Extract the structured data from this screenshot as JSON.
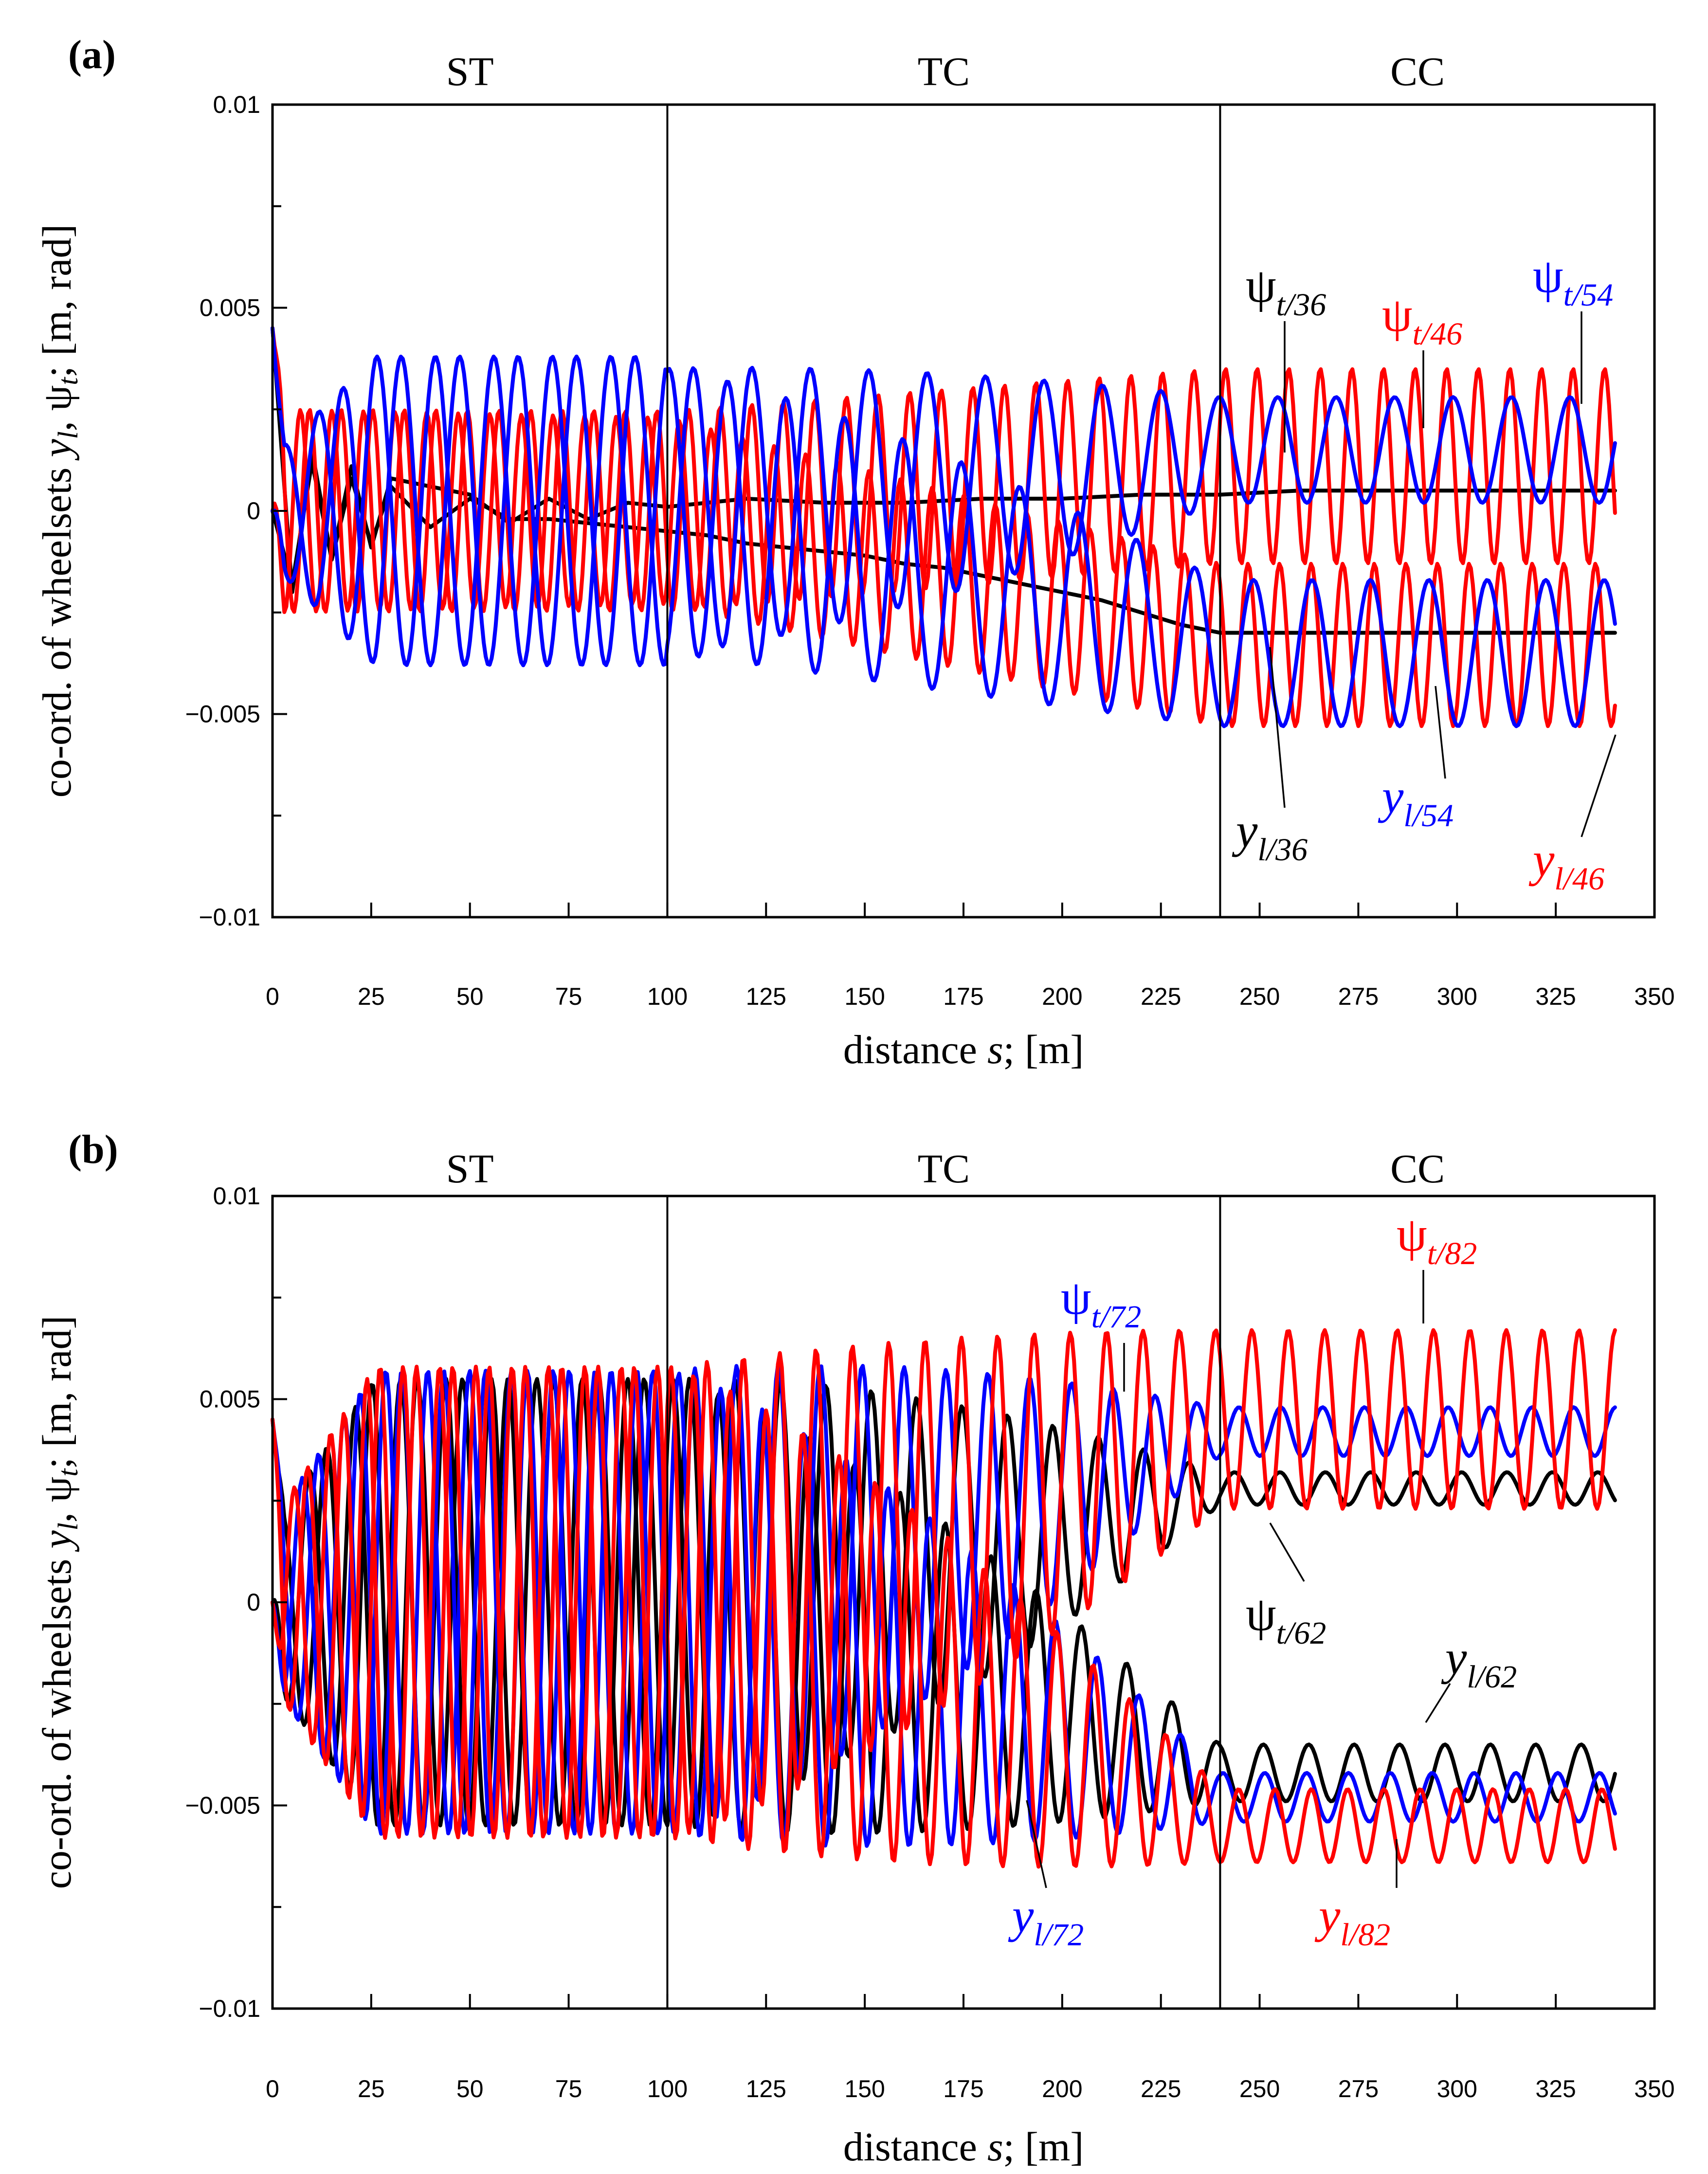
{
  "chart_data": [
    {
      "type": "line",
      "panel_label": "(a)",
      "xlabel_prefix": "distance ",
      "xlabel_var": "s",
      "xlabel_suffix": "; [m]",
      "ylabel": "co-ord. of wheelsets y_l, ψ_t; [m, rad]",
      "ylabel_parts": [
        "co-ord. of wheelsets ",
        "y",
        "l",
        ", ψ",
        "t",
        "; [m, rad]"
      ],
      "xlim": [
        0,
        350
      ],
      "ylim": [
        -0.01,
        0.01
      ],
      "x_ticks": [
        "0",
        "25",
        "50",
        "75",
        "100",
        "125",
        "150",
        "175",
        "200",
        "225",
        "250",
        "275",
        "300",
        "325",
        "350"
      ],
      "y_ticks": [
        "−0.01",
        "−0.005",
        "0",
        "0.005",
        "0.01"
      ],
      "section_dividers": [
        100,
        240
      ],
      "sections": [
        "ST",
        "TC",
        "CC"
      ],
      "series": [
        {
          "name": "ψ_t/36",
          "color": "#000000",
          "x": [
            0,
            5,
            10,
            15,
            20,
            25,
            30,
            40,
            50,
            60,
            70,
            80,
            90,
            100,
            120,
            140,
            160,
            180,
            200,
            220,
            240,
            260,
            280,
            300,
            320,
            340
          ],
          "values": [
            0.0045,
            -0.002,
            0.0015,
            -0.0012,
            0.0011,
            -0.0009,
            0.0008,
            0.0006,
            0.0004,
            -0.0003,
            0.0003,
            -0.0002,
            0.0002,
            0.0001,
            0.0003,
            0.0002,
            0.0002,
            0.0003,
            0.0003,
            0.0004,
            0.0004,
            0.0005,
            0.0005,
            0.0005,
            0.0005,
            0.0005
          ]
        },
        {
          "name": "y_l/36",
          "color": "#000000",
          "x": [
            0,
            5,
            10,
            15,
            20,
            25,
            30,
            40,
            50,
            60,
            70,
            80,
            90,
            100,
            110,
            120,
            130,
            140,
            150,
            160,
            170,
            180,
            190,
            200,
            210,
            220,
            230,
            240,
            260,
            280,
            300,
            320,
            340
          ],
          "values": [
            0.0,
            -0.0018,
            0.0012,
            -0.0012,
            0.0008,
            -0.0008,
            0.0006,
            -0.0004,
            0.0003,
            -0.0002,
            -0.0002,
            -0.0003,
            -0.0004,
            -0.0005,
            -0.0006,
            -0.0008,
            -0.0009,
            -0.001,
            -0.0011,
            -0.0013,
            -0.0014,
            -0.0016,
            -0.0018,
            -0.002,
            -0.0022,
            -0.0025,
            -0.0028,
            -0.003,
            -0.003,
            -0.003,
            -0.003,
            -0.003,
            -0.003
          ]
        },
        {
          "name": "ψ_t/46",
          "color": "#ff0000",
          "start": 0.0045,
          "damp_to": 0.0024,
          "center_st": 0.0,
          "center_cc": 0.0011,
          "period": 8.0,
          "phase": 0.5
        },
        {
          "name": "y_l/46",
          "color": "#ff0000",
          "start": 0.0,
          "damp_to": 0.002,
          "center_st": 0.0,
          "center_cc": -0.0033,
          "period": 8.0,
          "phase": 2.3
        },
        {
          "name": "ψ_t/54",
          "color": "#0000ff",
          "start": 0.0045,
          "amp_st": 0.0038,
          "amp_tc": 0.0035,
          "amp_cc": 0.0013,
          "center_st": 0.0,
          "center_cc": 0.0015,
          "period": 14.8,
          "phase": 0.3
        },
        {
          "name": "y_l/54",
          "color": "#0000ff",
          "start": 0.0,
          "amp_st": 0.0038,
          "amp_tc": 0.0035,
          "amp_cc": 0.0018,
          "center_st": 0.0,
          "center_cc": -0.0035,
          "period": 14.8,
          "phase": 2.9
        }
      ],
      "annotations": [
        {
          "sym": "ψ",
          "sub": "t/36",
          "color": "#000000"
        },
        {
          "sym": "ψ",
          "sub": "t/46",
          "color": "#ff0000"
        },
        {
          "sym": "ψ",
          "sub": "t/54",
          "color": "#0000ff"
        },
        {
          "sym": "y",
          "sub": "l/36",
          "color": "#000000"
        },
        {
          "sym": "y",
          "sub": "l/54",
          "color": "#0000ff"
        },
        {
          "sym": "y",
          "sub": "l/46",
          "color": "#ff0000"
        }
      ]
    },
    {
      "type": "line",
      "panel_label": "(b)",
      "xlabel_prefix": "distance ",
      "xlabel_var": "s",
      "xlabel_suffix": "; [m]",
      "ylabel": "co-ord. of wheelsets y_l, ψ_t; [m, rad]",
      "ylabel_parts": [
        "co-ord. of wheelsets ",
        "y",
        "l",
        ", ψ",
        "t",
        "; [m, rad]"
      ],
      "xlim": [
        0,
        350
      ],
      "ylim": [
        -0.01,
        0.01
      ],
      "x_ticks": [
        "0",
        "25",
        "50",
        "75",
        "100",
        "125",
        "150",
        "175",
        "200",
        "225",
        "250",
        "275",
        "300",
        "325",
        "350"
      ],
      "y_ticks": [
        "−0.01",
        "−0.005",
        "0",
        "0.005",
        "0.01"
      ],
      "section_dividers": [
        100,
        240
      ],
      "sections": [
        "ST",
        "TC",
        "CC"
      ],
      "series": [
        {
          "name": "ψ_t/62",
          "color": "#000000",
          "start": 0.0045,
          "amp_st": 0.0055,
          "amp_cc": 0.0004,
          "center_st": 0.0,
          "center_cc": 0.0028,
          "period": 11.5,
          "phase": 0.4
        },
        {
          "name": "y_l/62",
          "color": "#000000",
          "start": 0.0,
          "amp_st": 0.0055,
          "amp_cc": 0.0007,
          "center_st": 0.0,
          "center_cc": -0.0042,
          "period": 11.5,
          "phase": 2.7
        },
        {
          "name": "ψ_t/72",
          "color": "#0000ff",
          "start": 0.0045,
          "amp_st": 0.0057,
          "amp_cc": 0.0006,
          "center_st": 0.0,
          "center_cc": 0.0042,
          "period": 10.6,
          "phase": 1.0
        },
        {
          "name": "y_l/72",
          "color": "#0000ff",
          "start": 0.0,
          "amp_st": 0.0057,
          "amp_cc": 0.0006,
          "center_st": 0.0,
          "center_cc": -0.0048,
          "period": 10.6,
          "phase": 3.4
        },
        {
          "name": "ψ_t/82",
          "color": "#ff0000",
          "start": 0.0045,
          "amp_st": 0.0058,
          "amp_cc": 0.0022,
          "center_st": 0.0,
          "center_cc": 0.0045,
          "period": 9.2,
          "phase": 1.8
        },
        {
          "name": "y_l/82",
          "color": "#ff0000",
          "start": 0.0,
          "amp_st": 0.0058,
          "amp_cc": 0.0009,
          "center_st": 0.0,
          "center_cc": -0.0055,
          "period": 9.2,
          "phase": 4.1
        }
      ],
      "annotations": [
        {
          "sym": "ψ",
          "sub": "t/82",
          "color": "#ff0000"
        },
        {
          "sym": "ψ",
          "sub": "t/72",
          "color": "#0000ff"
        },
        {
          "sym": "ψ",
          "sub": "t/62",
          "color": "#000000"
        },
        {
          "sym": "y",
          "sub": "l/62",
          "color": "#000000"
        },
        {
          "sym": "y",
          "sub": "l/72",
          "color": "#0000ff"
        },
        {
          "sym": "y",
          "sub": "l/82",
          "color": "#ff0000"
        }
      ]
    }
  ]
}
